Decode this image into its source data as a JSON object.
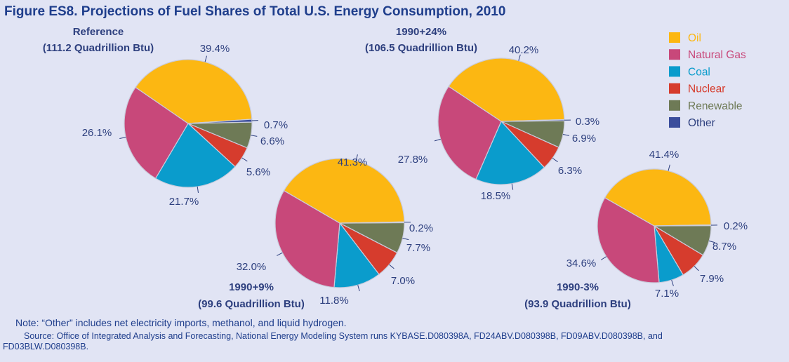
{
  "title": "Figure ES8.  Projections of Fuel Shares of Total U.S. Energy Consumption, 2010",
  "note": "Note: “Other” includes net electricity imports, methanol, and liquid hydrogen.",
  "source_line1": "Source: Office of Integrated Analysis and Forecasting, National Energy Modeling System runs KYBASE.D080398A, FD24ABV.D080398B, FD09ABV.D080398B, and",
  "source_line2": "FD03BLW.D080398B.",
  "colors": {
    "Oil": "#fcb712",
    "Natural Gas": "#c8487a",
    "Coal": "#0a9ccc",
    "Nuclear": "#d63c2d",
    "Renewable": "#6e7a56",
    "Other": "#3a4d9c",
    "text": "#1f3e8c",
    "label": "#2d3f7e",
    "background": "#e1e4f4"
  },
  "chart_data": {
    "type": "pie",
    "legend": [
      "Oil",
      "Natural Gas",
      "Coal",
      "Nuclear",
      "Renewable",
      "Other"
    ],
    "legend_position": "top-right",
    "pies": [
      {
        "name": "Reference",
        "subtitle": "(111.2 Quadrillion Btu)",
        "values": {
          "Oil": 39.4,
          "Natural Gas": 26.1,
          "Coal": 21.7,
          "Nuclear": 5.6,
          "Renewable": 6.6,
          "Other": 0.7
        },
        "labels": {
          "Oil": "39.4%",
          "Natural Gas": "26.1%",
          "Coal": "21.7%",
          "Nuclear": "5.6%",
          "Renewable": "6.6%",
          "Other": "0.7%"
        }
      },
      {
        "name": "1990+24%",
        "subtitle": "(106.5 Quadrillion Btu)",
        "values": {
          "Oil": 40.2,
          "Natural Gas": 27.8,
          "Coal": 18.5,
          "Nuclear": 6.3,
          "Renewable": 6.9,
          "Other": 0.3
        },
        "labels": {
          "Oil": "40.2%",
          "Natural Gas": "27.8%",
          "Coal": "18.5%",
          "Nuclear": "6.3%",
          "Renewable": "6.9%",
          "Other": "0.3%"
        }
      },
      {
        "name": "1990+9%",
        "subtitle": "(99.6 Quadrillion Btu)",
        "values": {
          "Oil": 41.3,
          "Natural Gas": 32.0,
          "Coal": 11.8,
          "Nuclear": 7.0,
          "Renewable": 7.7,
          "Other": 0.2
        },
        "labels": {
          "Oil": "41.3%",
          "Natural Gas": "32.0%",
          "Coal": "11.8%",
          "Nuclear": "7.0%",
          "Renewable": "7.7%",
          "Other": "0.2%"
        }
      },
      {
        "name": "1990-3%",
        "subtitle": "(93.9 Quadrillion Btu)",
        "values": {
          "Oil": 41.4,
          "Natural Gas": 34.6,
          "Coal": 7.1,
          "Nuclear": 7.9,
          "Renewable": 8.7,
          "Other": 0.2
        },
        "labels": {
          "Oil": "41.4%",
          "Natural Gas": "34.6%",
          "Coal": "7.1%",
          "Nuclear": "7.9%",
          "Renewable": "8.7%",
          "Other": "0.2%"
        }
      }
    ]
  }
}
